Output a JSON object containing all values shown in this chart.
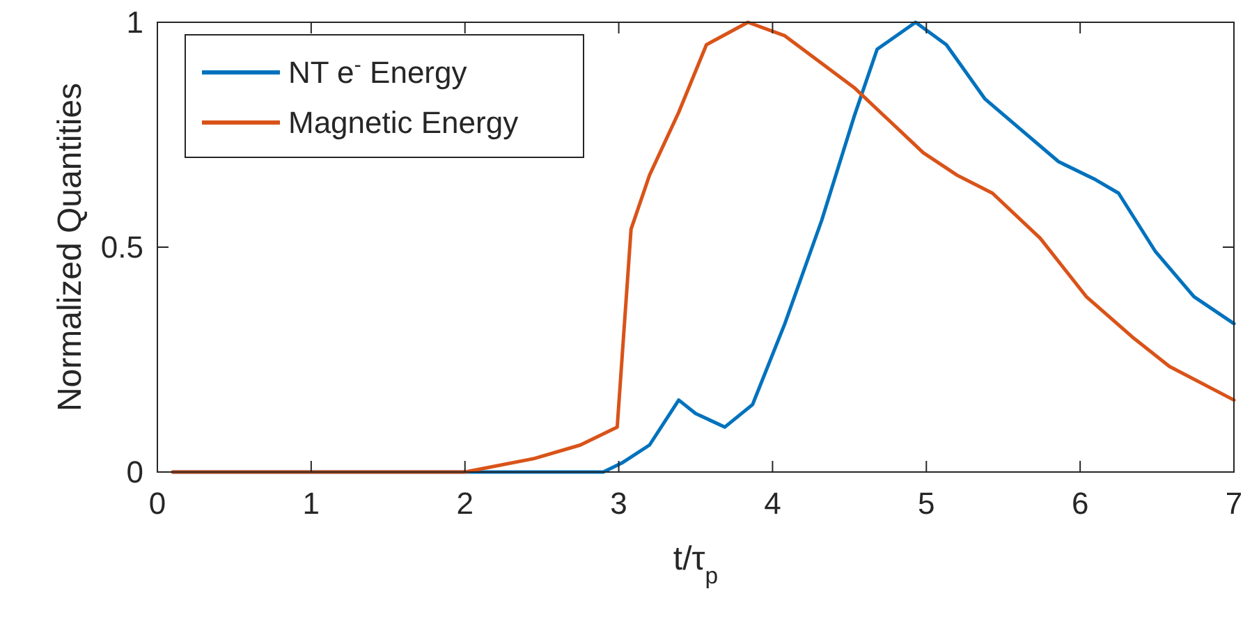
{
  "chart_data": {
    "type": "line",
    "xlabel": "t/τ$_{p}$",
    "ylabel": "Normalized Quantities",
    "xlim": [
      0,
      7
    ],
    "ylim": [
      0,
      1
    ],
    "xticks": [
      0,
      1,
      2,
      3,
      4,
      5,
      6,
      7
    ],
    "yticks": [
      0,
      0.5,
      1
    ],
    "grid": false,
    "legend": "top left",
    "line_style": "solid",
    "marker": "none",
    "series": [
      {
        "name": "NT e$^{-}$ Energy",
        "color": "#0072bd",
        "x": [
          0.1,
          2.0,
          2.9,
          3.02,
          3.2,
          3.39,
          3.5,
          3.69,
          3.87,
          4.08,
          4.32,
          4.53,
          4.68,
          4.93,
          5.13,
          5.38,
          5.62,
          5.86,
          6.1,
          6.25,
          6.49,
          6.74,
          7.0
        ],
        "values": [
          0,
          0,
          0,
          0.02,
          0.06,
          0.16,
          0.13,
          0.1,
          0.15,
          0.33,
          0.56,
          0.79,
          0.94,
          1.0,
          0.95,
          0.83,
          0.76,
          0.69,
          0.65,
          0.62,
          0.49,
          0.39,
          0.33
        ]
      },
      {
        "name": "Magnetic Energy",
        "color": "#d95319",
        "x": [
          0.1,
          2.0,
          2.45,
          2.75,
          2.99,
          3.08,
          3.2,
          3.39,
          3.57,
          3.84,
          4.08,
          4.53,
          4.98,
          5.2,
          5.43,
          5.74,
          6.04,
          6.34,
          6.58,
          7.0
        ],
        "values": [
          0,
          0,
          0.03,
          0.06,
          0.1,
          0.54,
          0.66,
          0.8,
          0.95,
          1.0,
          0.97,
          0.855,
          0.71,
          0.66,
          0.62,
          0.52,
          0.39,
          0.3,
          0.235,
          0.16
        ]
      }
    ]
  }
}
